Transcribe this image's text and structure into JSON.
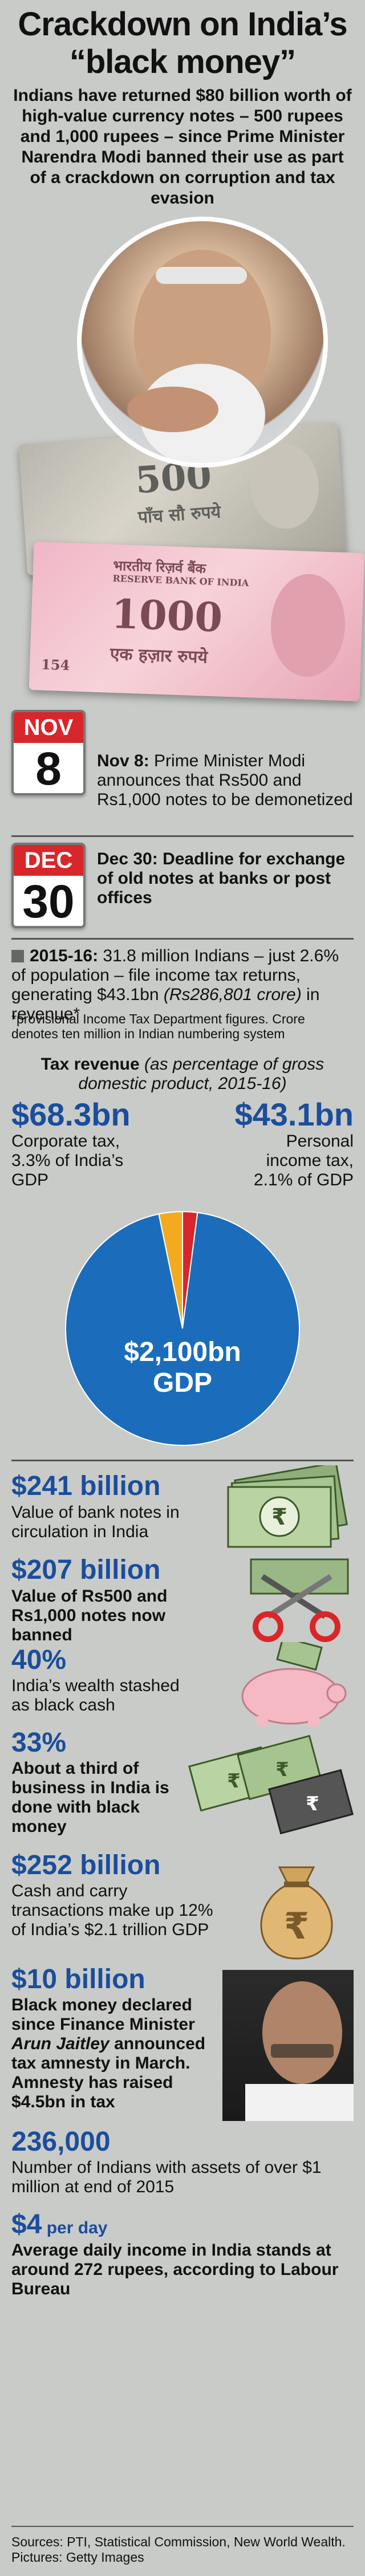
{
  "title_line1": "Crackdown on India’s",
  "title_line2": "“black money”",
  "intro": "Indians have returned $80 billion worth of high-value currency notes – 500 rupees and 1,000 rupees – since Prime Minister Narendra Modi banned their use as part of a crackdown on corruption and tax evasion",
  "banknotes": {
    "note500_numeral": "500",
    "note500_text": "पाँच सौ रुपये",
    "note1000_header": "भारतीय रिज़र्व बैंक",
    "note1000_header_en": "RESERVE BANK OF INDIA",
    "note1000_numeral": "1000",
    "note1000_text": "एक हज़ार रुपये",
    "note1000_serial": "154"
  },
  "events": [
    {
      "cal_month": "NOV",
      "cal_day": "8",
      "lead": "Nov 8:",
      "text": " Prime Minister Modi announces that Rs500 and Rs1,000 notes to be demonetized"
    },
    {
      "cal_month": "DEC",
      "cal_day": "30",
      "text": "Dec 30: Deadline for exchange of old notes at banks or post offices"
    }
  ],
  "filing": {
    "year": "2015-16:",
    "text1": " 31.8 million Indians – just 2.6% of population – file income tax returns, generating $43.1bn ",
    "text_italic": "(Rs286,801 crore)",
    "text2": " in revenue*",
    "footnote": "*provisional Income Tax Department figures. Crore denotes ten million in Indian numbering system"
  },
  "tax_revenue": {
    "title_bold": "Tax revenue",
    "title_italic": " (as percentage of gross domestic product, 2015-16)",
    "corporate_value": "$68.3bn",
    "corporate_label": "Corporate tax, 3.3% of India’s GDP",
    "personal_value": "$43.1bn",
    "personal_label": "Personal income tax, 2.1% of GDP",
    "gdp_value": "$2,100bn",
    "gdp_label": "GDP"
  },
  "chart_data": {
    "type": "pie",
    "slices": [
      {
        "name": "Corporate tax",
        "value": 68.3,
        "color": "#f3aa1f"
      },
      {
        "name": "Personal income tax",
        "value": 43.1,
        "color": "#d8262a"
      },
      {
        "name": "GDP",
        "value": 1988.6,
        "color": "#1b6dbb"
      }
    ]
  },
  "facts": [
    {
      "value": "$241 billion",
      "text": "Value of bank notes in circulation in India"
    },
    {
      "value": "$207 billion",
      "text": "Value of Rs500 and Rs1,000 notes now banned"
    },
    {
      "value": "40%",
      "text": "India’s wealth stashed as black cash"
    },
    {
      "value": "33%",
      "text": "About a third of business in India is done with black money"
    },
    {
      "value": "$252 billion",
      "text": "Cash and carry transactions make up 12% of India’s $2.1 trillion GDP"
    },
    {
      "value": "$10 billion",
      "text_a": "Black money declared since Finance Minister ",
      "text_italic": "Arun Jaitley",
      "text_b": " announced tax amnesty in March. Amnesty has raised $4.5bn in tax"
    },
    {
      "value": "236,000",
      "text": "Number of Indians with assets of over $1 million at end of 2015"
    },
    {
      "value": "$4",
      "value_suffix": " per day",
      "text": "Average daily income in India stands at around 272 rupees, according to Labour Bureau"
    }
  ],
  "icons": {
    "rupee": "₹"
  },
  "sources": "Sources: PTI, Statistical Commission, New World Wealth. Pictures: Getty Images",
  "colors": {
    "accent_blue": "#1b4d9c",
    "calendar_red": "#d8262a",
    "background": "#c9cbc8"
  }
}
